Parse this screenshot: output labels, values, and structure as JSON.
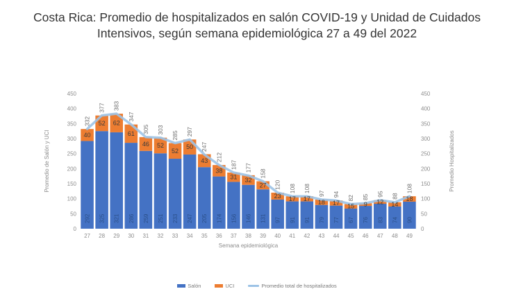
{
  "title": {
    "line1": "Costa Rica: Promedio de hospitalizados en salón COVID-19 y Unidad de Cuidados",
    "line2": "Intensivos, según semana epidemiológica 27 a 49 del 2022"
  },
  "colors": {
    "salon": "#4472c4",
    "uci": "#ed7d31",
    "total": "#9dc3e6",
    "tick": "#8c8c8c"
  },
  "chart_data": {
    "type": "bar",
    "stacked": true,
    "categories": [
      "27",
      "28",
      "29",
      "30",
      "31",
      "32",
      "33",
      "34",
      "35",
      "36",
      "37",
      "38",
      "39",
      "40",
      "41",
      "42",
      "43",
      "44",
      "45",
      "46",
      "47",
      "48",
      "49"
    ],
    "series": [
      {
        "name": "Salón",
        "values": [
          292,
          325,
          321,
          286,
          259,
          251,
          233,
          247,
          205,
          174,
          156,
          146,
          131,
          97,
          91,
          91,
          79,
          77,
          67,
          76,
          83,
          74,
          90
        ]
      },
      {
        "name": "UCI",
        "values": [
          40,
          52,
          62,
          61,
          46,
          52,
          52,
          50,
          43,
          38,
          31,
          32,
          27,
          23,
          17,
          17,
          18,
          17,
          15,
          9,
          12,
          14,
          18
        ]
      }
    ],
    "line_series": {
      "name": "Promedio total  de hospitalizados",
      "values": [
        332,
        377,
        383,
        347,
        305,
        303,
        285,
        297,
        247,
        212,
        187,
        177,
        158,
        120,
        108,
        108,
        97,
        94,
        82,
        85,
        95,
        88,
        108
      ]
    },
    "xlabel": "Semana epidemiológica",
    "ylabel_left": "Promedio de Salón y UCI",
    "ylabel_right": "Promedio Hospitalizados",
    "ylim": [
      0,
      450
    ],
    "yticks": [
      0,
      50,
      100,
      150,
      200,
      250,
      300,
      350,
      400,
      450
    ],
    "legend_position": "bottom"
  }
}
